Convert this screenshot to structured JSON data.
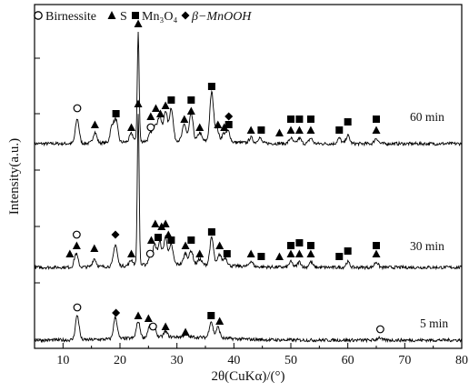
{
  "chart_data": {
    "type": "line",
    "xlabel": "2θ(CuKα)/(°)",
    "ylabel": "Intensity(a.u.)",
    "xlim": [
      5,
      80
    ],
    "x_ticks": [
      10,
      20,
      30,
      40,
      50,
      60,
      70,
      80
    ],
    "grid": false,
    "legend_position": "top",
    "legend": [
      {
        "marker": "circle-open",
        "name": "Birnessite"
      },
      {
        "marker": "triangle",
        "name": "S"
      },
      {
        "marker": "square",
        "name": "Mn₃O₄"
      },
      {
        "marker": "diamond",
        "name": "β−MnOOH"
      }
    ],
    "series": [
      {
        "name": "60 min",
        "peaks": [
          {
            "x": 12.5,
            "h": 0.09
          },
          {
            "x": 15.6,
            "h": 0.04
          },
          {
            "x": 18.6,
            "h": 0.06
          },
          {
            "x": 19.3,
            "h": 0.08
          },
          {
            "x": 22.0,
            "h": 0.03
          },
          {
            "x": 23.2,
            "h": 0.4
          },
          {
            "x": 25.4,
            "h": 0.03
          },
          {
            "x": 26.2,
            "h": 0.06
          },
          {
            "x": 27.0,
            "h": 0.09
          },
          {
            "x": 28.0,
            "h": 0.11
          },
          {
            "x": 29.0,
            "h": 0.12
          },
          {
            "x": 31.3,
            "h": 0.06
          },
          {
            "x": 32.5,
            "h": 0.1
          },
          {
            "x": 34.0,
            "h": 0.03
          },
          {
            "x": 36.1,
            "h": 0.18
          },
          {
            "x": 37.0,
            "h": 0.05
          },
          {
            "x": 38.2,
            "h": 0.03
          },
          {
            "x": 39.0,
            "h": 0.04
          },
          {
            "x": 43.0,
            "h": 0.02
          },
          {
            "x": 44.5,
            "h": 0.02
          },
          {
            "x": 50.0,
            "h": 0.02
          },
          {
            "x": 51.5,
            "h": 0.02
          },
          {
            "x": 53.5,
            "h": 0.02
          },
          {
            "x": 58.5,
            "h": 0.02
          },
          {
            "x": 60.0,
            "h": 0.03
          },
          {
            "x": 65.0,
            "h": 0.02
          }
        ]
      },
      {
        "name": "30 min",
        "peaks": [
          {
            "x": 12.3,
            "h": 0.05
          },
          {
            "x": 15.5,
            "h": 0.03
          },
          {
            "x": 19.2,
            "h": 0.08
          },
          {
            "x": 22.0,
            "h": 0.02
          },
          {
            "x": 23.2,
            "h": 0.56
          },
          {
            "x": 25.3,
            "h": 0.03
          },
          {
            "x": 26.1,
            "h": 0.07
          },
          {
            "x": 27.0,
            "h": 0.08
          },
          {
            "x": 28.0,
            "h": 0.1
          },
          {
            "x": 29.0,
            "h": 0.07
          },
          {
            "x": 31.5,
            "h": 0.04
          },
          {
            "x": 32.5,
            "h": 0.05
          },
          {
            "x": 34.0,
            "h": 0.02
          },
          {
            "x": 36.1,
            "h": 0.1
          },
          {
            "x": 37.5,
            "h": 0.04
          },
          {
            "x": 38.5,
            "h": 0.03
          },
          {
            "x": 43.0,
            "h": 0.02
          },
          {
            "x": 50.0,
            "h": 0.02
          },
          {
            "x": 51.5,
            "h": 0.02
          },
          {
            "x": 53.5,
            "h": 0.02
          },
          {
            "x": 60.0,
            "h": 0.02
          },
          {
            "x": 65.0,
            "h": 0.02
          }
        ]
      },
      {
        "name": "5 min",
        "peaks": [
          {
            "x": 12.5,
            "h": 0.09
          },
          {
            "x": 19.2,
            "h": 0.08
          },
          {
            "x": 23.2,
            "h": 0.06
          },
          {
            "x": 25.2,
            "h": 0.04
          },
          {
            "x": 26.0,
            "h": 0.04
          },
          {
            "x": 28.0,
            "h": 0.02
          },
          {
            "x": 31.5,
            "h": 0.01
          },
          {
            "x": 36.0,
            "h": 0.06
          },
          {
            "x": 37.2,
            "h": 0.04
          },
          {
            "x": 65.5,
            "h": 0.01
          }
        ]
      }
    ],
    "markers": [
      {
        "series": "60 min",
        "type": "circle-open",
        "x": 12.5,
        "y": 0.13
      },
      {
        "series": "60 min",
        "type": "triangle",
        "x": 15.6,
        "y": 0.07
      },
      {
        "series": "60 min",
        "type": "square",
        "x": 19.3,
        "y": 0.11
      },
      {
        "series": "60 min",
        "type": "triangle",
        "x": 22.0,
        "y": 0.06
      },
      {
        "series": "60 min",
        "type": "triangle",
        "x": 23.2,
        "y": 0.44
      },
      {
        "series": "60 min",
        "type": "circle-open",
        "x": 25.4,
        "y": 0.06
      },
      {
        "series": "60 min",
        "type": "triangle",
        "x": 25.4,
        "y": 0.1
      },
      {
        "series": "60 min",
        "type": "triangle",
        "x": 26.3,
        "y": 0.13
      },
      {
        "series": "60 min",
        "type": "triangle",
        "x": 27.1,
        "y": 0.11
      },
      {
        "series": "60 min",
        "type": "triangle",
        "x": 28.0,
        "y": 0.14
      },
      {
        "series": "60 min",
        "type": "square",
        "x": 29.0,
        "y": 0.16
      },
      {
        "series": "60 min",
        "type": "triangle",
        "x": 31.3,
        "y": 0.09
      },
      {
        "series": "60 min",
        "type": "square",
        "x": 32.5,
        "y": 0.16
      },
      {
        "series": "60 min",
        "type": "triangle",
        "x": 32.5,
        "y": 0.12
      },
      {
        "series": "60 min",
        "type": "triangle",
        "x": 34.0,
        "y": 0.06
      },
      {
        "series": "60 min",
        "type": "square",
        "x": 36.1,
        "y": 0.21
      },
      {
        "series": "60 min",
        "type": "triangle",
        "x": 37.2,
        "y": 0.07
      },
      {
        "series": "60 min",
        "type": "triangle",
        "x": 38.3,
        "y": 0.06
      },
      {
        "series": "60 min",
        "type": "diamond",
        "x": 39.1,
        "y": 0.1
      },
      {
        "series": "60 min",
        "type": "square",
        "x": 39.1,
        "y": 0.07
      },
      {
        "series": "60 min",
        "type": "triangle",
        "x": 43.0,
        "y": 0.05
      },
      {
        "series": "60 min",
        "type": "square",
        "x": 44.8,
        "y": 0.05
      },
      {
        "series": "60 min",
        "type": "triangle",
        "x": 48.0,
        "y": 0.04
      },
      {
        "series": "60 min",
        "type": "square",
        "x": 50.0,
        "y": 0.09
      },
      {
        "series": "60 min",
        "type": "triangle",
        "x": 50.0,
        "y": 0.05
      },
      {
        "series": "60 min",
        "type": "square",
        "x": 51.5,
        "y": 0.09
      },
      {
        "series": "60 min",
        "type": "triangle",
        "x": 51.5,
        "y": 0.05
      },
      {
        "series": "60 min",
        "type": "square",
        "x": 53.5,
        "y": 0.09
      },
      {
        "series": "60 min",
        "type": "triangle",
        "x": 53.5,
        "y": 0.05
      },
      {
        "series": "60 min",
        "type": "square",
        "x": 58.5,
        "y": 0.05
      },
      {
        "series": "60 min",
        "type": "square",
        "x": 60.0,
        "y": 0.08
      },
      {
        "series": "60 min",
        "type": "square",
        "x": 65.0,
        "y": 0.09
      },
      {
        "series": "60 min",
        "type": "triangle",
        "x": 65.0,
        "y": 0.05
      },
      {
        "series": "30 min",
        "type": "triangle",
        "x": 11.2,
        "y": 0.05
      },
      {
        "series": "30 min",
        "type": "circle-open",
        "x": 12.4,
        "y": 0.12
      },
      {
        "series": "30 min",
        "type": "triangle",
        "x": 12.4,
        "y": 0.08
      },
      {
        "series": "30 min",
        "type": "triangle",
        "x": 15.5,
        "y": 0.07
      },
      {
        "series": "30 min",
        "type": "diamond",
        "x": 19.2,
        "y": 0.12
      },
      {
        "series": "30 min",
        "type": "triangle",
        "x": 22.0,
        "y": 0.05
      },
      {
        "series": "30 min",
        "type": "triangle",
        "x": 23.2,
        "y": 0.6
      },
      {
        "series": "30 min",
        "type": "circle-open",
        "x": 25.3,
        "y": 0.05
      },
      {
        "series": "30 min",
        "type": "triangle",
        "x": 25.5,
        "y": 0.1
      },
      {
        "series": "30 min",
        "type": "triangle",
        "x": 26.2,
        "y": 0.16
      },
      {
        "series": "30 min",
        "type": "square",
        "x": 26.7,
        "y": 0.11
      },
      {
        "series": "30 min",
        "type": "triangle",
        "x": 27.3,
        "y": 0.15
      },
      {
        "series": "30 min",
        "type": "triangle",
        "x": 28.0,
        "y": 0.16
      },
      {
        "series": "30 min",
        "type": "triangle",
        "x": 28.5,
        "y": 0.12
      },
      {
        "series": "30 min",
        "type": "square",
        "x": 29.0,
        "y": 0.1
      },
      {
        "series": "30 min",
        "type": "triangle",
        "x": 31.5,
        "y": 0.08
      },
      {
        "series": "30 min",
        "type": "square",
        "x": 32.5,
        "y": 0.1
      },
      {
        "series": "30 min",
        "type": "triangle",
        "x": 34.0,
        "y": 0.05
      },
      {
        "series": "30 min",
        "type": "square",
        "x": 36.1,
        "y": 0.13
      },
      {
        "series": "30 min",
        "type": "triangle",
        "x": 37.5,
        "y": 0.08
      },
      {
        "series": "30 min",
        "type": "square",
        "x": 38.8,
        "y": 0.05
      },
      {
        "series": "30 min",
        "type": "triangle",
        "x": 43.0,
        "y": 0.05
      },
      {
        "series": "30 min",
        "type": "square",
        "x": 44.8,
        "y": 0.04
      },
      {
        "series": "30 min",
        "type": "triangle",
        "x": 48.0,
        "y": 0.04
      },
      {
        "series": "30 min",
        "type": "square",
        "x": 50.0,
        "y": 0.08
      },
      {
        "series": "30 min",
        "type": "triangle",
        "x": 50.0,
        "y": 0.05
      },
      {
        "series": "30 min",
        "type": "square",
        "x": 51.5,
        "y": 0.09
      },
      {
        "series": "30 min",
        "type": "triangle",
        "x": 51.5,
        "y": 0.05
      },
      {
        "series": "30 min",
        "type": "square",
        "x": 53.5,
        "y": 0.08
      },
      {
        "series": "30 min",
        "type": "triangle",
        "x": 53.5,
        "y": 0.05
      },
      {
        "series": "30 min",
        "type": "square",
        "x": 58.5,
        "y": 0.04
      },
      {
        "series": "30 min",
        "type": "square",
        "x": 60.0,
        "y": 0.06
      },
      {
        "series": "30 min",
        "type": "square",
        "x": 65.0,
        "y": 0.08
      },
      {
        "series": "30 min",
        "type": "triangle",
        "x": 65.0,
        "y": 0.05
      },
      {
        "series": "5 min",
        "type": "circle-open",
        "x": 12.5,
        "y": 0.12
      },
      {
        "series": "5 min",
        "type": "diamond",
        "x": 19.3,
        "y": 0.1
      },
      {
        "series": "5 min",
        "type": "triangle",
        "x": 23.2,
        "y": 0.09
      },
      {
        "series": "5 min",
        "type": "triangle",
        "x": 25.0,
        "y": 0.08
      },
      {
        "series": "5 min",
        "type": "circle-open",
        "x": 25.8,
        "y": 0.05
      },
      {
        "series": "5 min",
        "type": "triangle",
        "x": 28.0,
        "y": 0.05
      },
      {
        "series": "5 min",
        "type": "triangle",
        "x": 31.5,
        "y": 0.03
      },
      {
        "series": "5 min",
        "type": "square",
        "x": 36.0,
        "y": 0.09
      },
      {
        "series": "5 min",
        "type": "triangle",
        "x": 37.5,
        "y": 0.07
      },
      {
        "series": "5 min",
        "type": "circle-open",
        "x": 65.7,
        "y": 0.04
      }
    ],
    "colors": {
      "line": "#000000",
      "background": "#ffffff"
    }
  }
}
